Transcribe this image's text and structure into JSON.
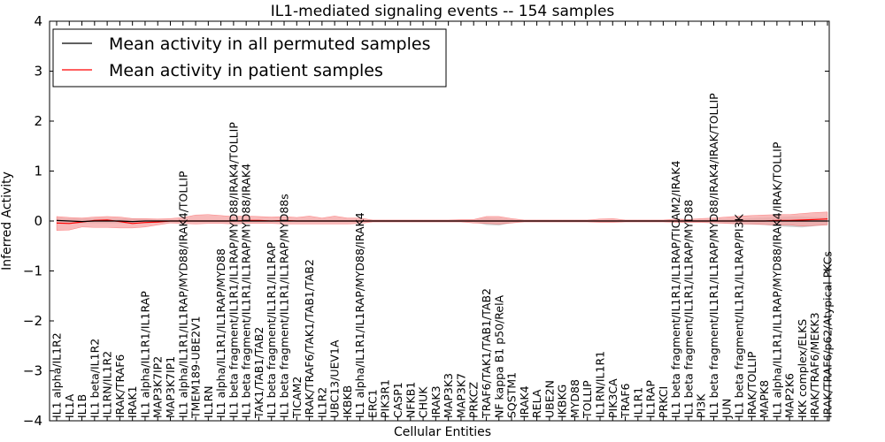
{
  "chart_data": {
    "type": "line",
    "title": "IL1-mediated signaling events -- 154 samples",
    "xlabel": "Cellular Entities",
    "ylabel": "Inferred Activity",
    "ylim": [
      -4,
      4
    ],
    "yticks": [
      -4,
      -3,
      -2,
      -1,
      0,
      1,
      2,
      3,
      4
    ],
    "ytick_labels": [
      "−4",
      "−3",
      "−2",
      "−1",
      "0",
      "1",
      "2",
      "3",
      "4"
    ],
    "grid": false,
    "legend_position": "top-left",
    "categories": [
      "IL1 alpha/IL1R2",
      "IL1A",
      "IL1B",
      "IL1 beta/IL1R2",
      "IL1RN/IL1R2",
      "IRAK/TRAF6",
      "IRAK1",
      "IL1 alpha/IL1R1/IL1RAP",
      "MAP3K7IP2",
      "MAP3K7IP1",
      "IL1 alpha/IL1R1/IL1RAP/MYD88/IRAK4/TOLLIP",
      "TMEM189-UBE2V1",
      "IL1RN",
      "IL1 alpha/IL1R1/IL1RAP/MYD88",
      "IL1 beta fragment/IL1R1/IL1RAP/MYD88/IRAK4/TOLLIP",
      "IL1 beta fragment/IL1R1/IL1RAP/MYD88/IRAK4",
      "TAK1/TAB1/TAB2",
      "IL1 beta fragment/IL1R1/IL1RAP",
      "IL1 beta fragment/IL1R1/IL1RAP/MYD88s",
      "TICAM2",
      "IRAK/TRAF6/TAK1/TAB1/TAB2",
      "IL1R2",
      "UBC13/UEV1A",
      "IKBKB",
      "IL1 alpha/IL1R1/IL1RAP/MYD88/IRAK4",
      "ERC1",
      "PIK3R1",
      "CASP1",
      "NFKB1",
      "CHUK",
      "IRAK3",
      "MAP3K3",
      "MAP3K7",
      "PRKCZ",
      "TRAF6/TAK1/TAB1/TAB2",
      "NF kappa B1 p50/RelA",
      "SQSTM1",
      "IRAK4",
      "RELA",
      "UBE2N",
      "IKBKG",
      "MYD88",
      "TOLLIP",
      "IL1RN/IL1R1",
      "PIK3CA",
      "TRAF6",
      "IL1R1",
      "IL1RAP",
      "PRKCI",
      "IL1 beta fragment/IL1R1/IL1RAP/TICAM2/IRAK4",
      "IL1 beta fragment/IL1R1/IL1RAP/MYD88",
      "PI3K",
      "IL1 beta fragment/IL1R1/IL1RAP/MYD88/IRAK4/IRAK/TOLLIP",
      "JUN",
      "IL1 beta fragment/IL1R1/IL1RAP/PI3K",
      "IRAK/TOLLIP",
      "MAPK8",
      "IL1 alpha/IL1R1/IL1RAP/MYD88/IRAK4/IRAK/TOLLIP",
      "MAP2K6",
      "IKK complex/ELKS",
      "IRAK/TRAF6/MEKK3",
      "IRAK/TRAF6/p62/Atypical PKCs"
    ],
    "series": [
      {
        "name": "Mean activity in all permuted samples",
        "color": "#000000",
        "values": [
          0.01,
          0.0,
          -0.01,
          0.0,
          0.0,
          0.0,
          -0.01,
          0.0,
          0.0,
          0.0,
          0.0,
          0.0,
          0.0,
          0.0,
          0.0,
          0.0,
          0.0,
          0.0,
          0.0,
          0.0,
          0.0,
          0.0,
          0.0,
          0.0,
          0.0,
          0.0,
          0.0,
          0.0,
          0.0,
          0.0,
          0.0,
          0.0,
          0.0,
          0.0,
          0.0,
          0.0,
          0.0,
          0.0,
          0.0,
          0.0,
          0.0,
          0.0,
          0.0,
          0.0,
          0.0,
          0.0,
          0.0,
          0.0,
          0.0,
          0.0,
          0.0,
          0.0,
          0.0,
          0.0,
          0.0,
          0.0,
          0.0,
          0.0,
          0.0,
          0.0,
          0.0,
          0.0
        ],
        "band_lower": [
          -0.06,
          -0.05,
          -0.05,
          -0.05,
          -0.05,
          -0.05,
          -0.06,
          -0.05,
          -0.03,
          -0.02,
          -0.02,
          -0.02,
          -0.02,
          -0.02,
          -0.02,
          -0.02,
          -0.02,
          -0.02,
          -0.02,
          -0.02,
          -0.02,
          -0.02,
          -0.02,
          -0.02,
          -0.02,
          -0.01,
          -0.01,
          -0.01,
          -0.01,
          -0.01,
          -0.01,
          -0.01,
          -0.01,
          -0.02,
          -0.08,
          -0.09,
          -0.04,
          -0.01,
          -0.01,
          -0.01,
          -0.01,
          -0.01,
          -0.01,
          -0.01,
          -0.01,
          -0.01,
          -0.01,
          -0.01,
          -0.01,
          -0.02,
          -0.02,
          -0.02,
          -0.03,
          -0.05,
          -0.06,
          -0.07,
          -0.08,
          -0.1,
          -0.12,
          -0.13,
          -0.1,
          -0.08
        ],
        "band_upper": [
          0.06,
          0.05,
          0.05,
          0.05,
          0.05,
          0.05,
          0.05,
          0.04,
          0.03,
          0.02,
          0.02,
          0.02,
          0.02,
          0.02,
          0.02,
          0.02,
          0.02,
          0.02,
          0.02,
          0.02,
          0.02,
          0.02,
          0.02,
          0.02,
          0.02,
          0.01,
          0.01,
          0.01,
          0.01,
          0.01,
          0.01,
          0.01,
          0.01,
          0.02,
          0.06,
          0.05,
          0.03,
          0.01,
          0.01,
          0.01,
          0.01,
          0.01,
          0.01,
          0.01,
          0.01,
          0.01,
          0.01,
          0.01,
          0.01,
          0.02,
          0.02,
          0.02,
          0.03,
          0.04,
          0.05,
          0.06,
          0.07,
          0.08,
          0.09,
          0.09,
          0.08,
          0.07
        ]
      },
      {
        "name": "Mean activity in patient samples",
        "color": "#ff0000",
        "band_color": "#f5a3a3",
        "values": [
          -0.04,
          -0.05,
          -0.02,
          0.01,
          0.02,
          -0.01,
          -0.05,
          -0.03,
          -0.02,
          0.0,
          0.0,
          0.0,
          0.0,
          0.0,
          0.0,
          0.01,
          0.01,
          0.0,
          0.01,
          0.0,
          0.0,
          0.0,
          0.0,
          0.0,
          0.0,
          0.0,
          0.0,
          0.0,
          0.0,
          0.0,
          0.0,
          0.0,
          0.0,
          0.0,
          0.0,
          0.0,
          0.0,
          0.0,
          0.0,
          0.0,
          0.0,
          0.0,
          0.0,
          0.0,
          0.0,
          0.0,
          0.0,
          0.0,
          0.0,
          0.0,
          0.0,
          0.0,
          0.0,
          0.0,
          0.0,
          0.0,
          0.0,
          0.01,
          0.01,
          0.02,
          0.03,
          0.04
        ],
        "band_lower": [
          -0.19,
          -0.18,
          -0.12,
          -0.13,
          -0.13,
          -0.14,
          -0.14,
          -0.12,
          -0.08,
          -0.04,
          -0.05,
          -0.06,
          -0.05,
          -0.05,
          -0.06,
          -0.05,
          -0.05,
          -0.05,
          -0.06,
          -0.06,
          -0.06,
          -0.06,
          -0.06,
          -0.06,
          -0.05,
          -0.02,
          -0.02,
          -0.02,
          -0.02,
          -0.02,
          -0.02,
          -0.02,
          -0.02,
          -0.04,
          -0.05,
          -0.06,
          -0.04,
          -0.02,
          -0.02,
          -0.02,
          -0.02,
          -0.02,
          -0.02,
          -0.03,
          -0.03,
          -0.02,
          -0.02,
          -0.02,
          -0.02,
          -0.03,
          -0.03,
          -0.03,
          -0.04,
          -0.05,
          -0.06,
          -0.06,
          -0.07,
          -0.08,
          -0.08,
          -0.1,
          -0.09,
          -0.08
        ],
        "band_upper": [
          0.09,
          0.07,
          0.06,
          0.08,
          0.09,
          0.08,
          0.05,
          0.05,
          0.04,
          0.05,
          0.07,
          0.12,
          0.13,
          0.11,
          0.09,
          0.1,
          0.09,
          0.08,
          0.09,
          0.07,
          0.1,
          0.06,
          0.1,
          0.06,
          0.06,
          0.02,
          0.02,
          0.02,
          0.02,
          0.02,
          0.02,
          0.02,
          0.03,
          0.03,
          0.09,
          0.09,
          0.05,
          0.02,
          0.02,
          0.02,
          0.02,
          0.02,
          0.02,
          0.04,
          0.05,
          0.02,
          0.02,
          0.02,
          0.02,
          0.04,
          0.03,
          0.05,
          0.06,
          0.08,
          0.1,
          0.11,
          0.12,
          0.13,
          0.13,
          0.15,
          0.17,
          0.18
        ]
      }
    ]
  }
}
